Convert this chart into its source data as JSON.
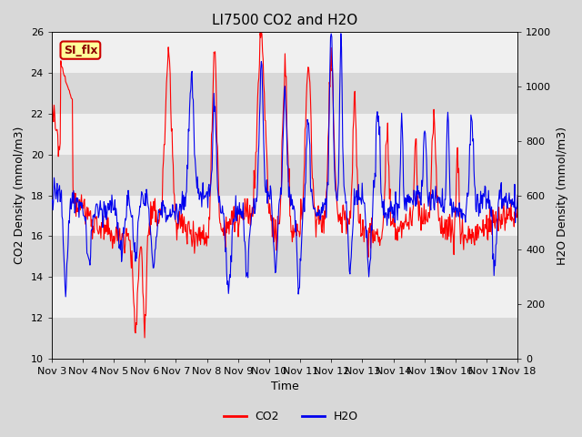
{
  "title": "LI7500 CO2 and H2O",
  "xlabel": "Time",
  "ylabel_left": "CO2 Density (mmol/m3)",
  "ylabel_right": "H2O Density (mmol/m3)",
  "ylim_left": [
    10,
    26
  ],
  "ylim_right": [
    0,
    1200
  ],
  "yticks_left": [
    10,
    12,
    14,
    16,
    18,
    20,
    22,
    24,
    26
  ],
  "yticks_right": [
    0,
    200,
    400,
    600,
    800,
    1000,
    1200
  ],
  "xtick_labels": [
    "Nov 3",
    "Nov 4",
    "Nov 5",
    "Nov 6",
    "Nov 7",
    "Nov 8",
    "Nov 9",
    "Nov 10",
    "Nov 11",
    "Nov 12",
    "Nov 13",
    "Nov 14",
    "Nov 15",
    "Nov 16",
    "Nov 17",
    "Nov 18"
  ],
  "co2_color": "#ff0000",
  "h2o_color": "#0000ee",
  "background_color": "#d8d8d8",
  "plot_background": "#f0f0f0",
  "band_color_dark": "#d8d8d8",
  "band_color_light": "#f0f0f0",
  "annotation_text": "SI_flx",
  "annotation_bg": "#ffff99",
  "annotation_border": "#cc0000",
  "legend_co2": "CO2",
  "legend_h2o": "H2O",
  "title_fontsize": 11,
  "label_fontsize": 9,
  "tick_fontsize": 8,
  "n_days": 16,
  "n_points": 768
}
